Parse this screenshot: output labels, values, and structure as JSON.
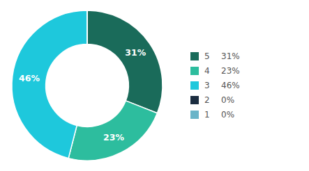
{
  "chart_data": {
    "type": "pie",
    "categories": [
      "5",
      "4",
      "3",
      "2",
      "1"
    ],
    "values": [
      31,
      23,
      46,
      0.0001,
      0.0001
    ],
    "value_labels": [
      "31%",
      "23%",
      "46%",
      "0%",
      "0%"
    ],
    "colors": [
      "#1a6b5a",
      "#2dbd9e",
      "#1ec8dc",
      "#1b2d40",
      "#6ab4c8"
    ],
    "data_labels": true,
    "legend": "right"
  }
}
